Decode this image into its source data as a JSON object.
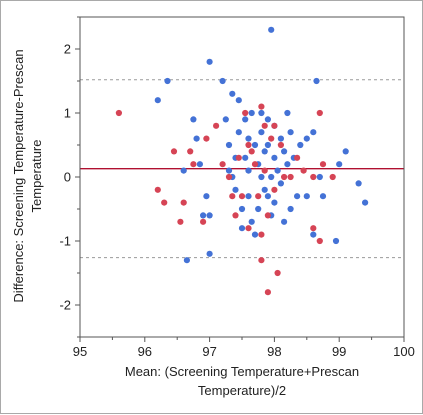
{
  "chart_data": {
    "type": "scatter",
    "title": "",
    "xlabel_lines": [
      "Mean: (Screening Temperature+Prescan",
      "Temperature)/2"
    ],
    "ylabel_lines": [
      "Difference: Screening Temperature-Prescan",
      "Temperature"
    ],
    "xlim": [
      95,
      100
    ],
    "ylim": [
      -2.5,
      2.5
    ],
    "x_ticks": [
      "95",
      "96",
      "97",
      "98",
      "99",
      "100"
    ],
    "y_ticks": [
      "2",
      "1",
      "0",
      "-1",
      "-2"
    ],
    "grid": false,
    "reference_lines": {
      "mean_difference": 0.13,
      "upper_limit": 1.52,
      "lower_limit": -1.26
    },
    "colors": {
      "blue_points": "#4472d6",
      "red_points": "#d64455",
      "mean_line": "#b01030",
      "limit_lines": "#9a9a9a"
    },
    "series": [
      {
        "color": "#4472d6",
        "points": [
          [
            96.2,
            1.2
          ],
          [
            96.35,
            1.5
          ],
          [
            96.6,
            0.1
          ],
          [
            96.65,
            -1.3
          ],
          [
            96.75,
            0.9
          ],
          [
            96.8,
            0.6
          ],
          [
            96.85,
            0.2
          ],
          [
            96.9,
            -0.6
          ],
          [
            96.95,
            -0.3
          ],
          [
            97.0,
            1.8
          ],
          [
            97.0,
            -0.6
          ],
          [
            97.0,
            -1.2
          ],
          [
            97.2,
            1.5
          ],
          [
            97.25,
            0.9
          ],
          [
            97.3,
            0.5
          ],
          [
            97.3,
            0.1
          ],
          [
            97.35,
            1.3
          ],
          [
            97.35,
            0.0
          ],
          [
            97.4,
            0.3
          ],
          [
            97.4,
            -0.2
          ],
          [
            97.45,
            1.2
          ],
          [
            97.45,
            0.7
          ],
          [
            97.5,
            -0.5
          ],
          [
            97.5,
            -0.8
          ],
          [
            97.55,
            0.9
          ],
          [
            97.55,
            0.3
          ],
          [
            97.6,
            0.6
          ],
          [
            97.6,
            0.1
          ],
          [
            97.6,
            -0.3
          ],
          [
            97.65,
            1.0
          ],
          [
            97.65,
            -0.7
          ],
          [
            97.7,
            0.5
          ],
          [
            97.7,
            -0.9
          ],
          [
            97.75,
            0.2
          ],
          [
            97.75,
            -0.5
          ],
          [
            97.8,
            1.0
          ],
          [
            97.8,
            0.7
          ],
          [
            97.8,
            0.0
          ],
          [
            97.85,
            0.4
          ],
          [
            97.85,
            -0.2
          ],
          [
            97.9,
            0.9
          ],
          [
            97.9,
            0.5
          ],
          [
            97.9,
            -0.3
          ],
          [
            97.95,
            2.3
          ],
          [
            97.95,
            0.0
          ],
          [
            97.95,
            -0.6
          ],
          [
            98.0,
            0.8
          ],
          [
            98.0,
            0.3
          ],
          [
            98.0,
            -0.4
          ],
          [
            98.05,
            0.1
          ],
          [
            98.1,
            0.6
          ],
          [
            98.1,
            -0.1
          ],
          [
            98.15,
            0.4
          ],
          [
            98.15,
            -0.7
          ],
          [
            98.2,
            1.0
          ],
          [
            98.2,
            0.2
          ],
          [
            98.25,
            0.7
          ],
          [
            98.25,
            -0.5
          ],
          [
            98.3,
            0.3
          ],
          [
            98.35,
            -0.3
          ],
          [
            98.4,
            0.5
          ],
          [
            98.5,
            0.6
          ],
          [
            98.5,
            -0.3
          ],
          [
            98.6,
            0.7
          ],
          [
            98.6,
            -0.9
          ],
          [
            98.65,
            1.5
          ],
          [
            98.7,
            0.0
          ],
          [
            98.75,
            -0.3
          ],
          [
            98.95,
            -1.0
          ],
          [
            99.0,
            0.2
          ],
          [
            99.1,
            0.4
          ],
          [
            99.3,
            -0.1
          ],
          [
            99.4,
            -0.4
          ]
        ]
      },
      {
        "color": "#d64455",
        "points": [
          [
            95.6,
            1.0
          ],
          [
            96.2,
            -0.2
          ],
          [
            96.3,
            -0.4
          ],
          [
            96.45,
            0.4
          ],
          [
            96.55,
            -0.7
          ],
          [
            96.6,
            -0.4
          ],
          [
            96.7,
            0.4
          ],
          [
            96.75,
            0.2
          ],
          [
            96.9,
            -0.7
          ],
          [
            96.95,
            0.6
          ],
          [
            97.1,
            0.8
          ],
          [
            97.2,
            0.2
          ],
          [
            97.3,
            0.0
          ],
          [
            97.35,
            -0.3
          ],
          [
            97.4,
            -0.6
          ],
          [
            97.45,
            0.3
          ],
          [
            97.5,
            -0.3
          ],
          [
            97.55,
            1.0
          ],
          [
            97.6,
            0.5
          ],
          [
            97.6,
            -0.8
          ],
          [
            97.65,
            0.4
          ],
          [
            97.7,
            0.2
          ],
          [
            97.75,
            -0.3
          ],
          [
            97.8,
            1.1
          ],
          [
            97.8,
            -0.9
          ],
          [
            97.8,
            -1.3
          ],
          [
            97.85,
            0.8
          ],
          [
            97.85,
            0.1
          ],
          [
            97.9,
            -0.6
          ],
          [
            97.9,
            -1.8
          ],
          [
            97.95,
            0.6
          ],
          [
            98.0,
            0.8
          ],
          [
            98.0,
            -0.2
          ],
          [
            98.05,
            -1.5
          ],
          [
            98.1,
            0.5
          ],
          [
            98.15,
            0.0
          ],
          [
            98.25,
            0.0
          ],
          [
            98.35,
            0.3
          ],
          [
            98.45,
            0.1
          ],
          [
            98.6,
            0.0
          ],
          [
            98.6,
            -0.8
          ],
          [
            98.7,
            -1.0
          ],
          [
            98.7,
            1.0
          ],
          [
            98.75,
            0.2
          ],
          [
            98.9,
            0.0
          ]
        ]
      }
    ]
  }
}
